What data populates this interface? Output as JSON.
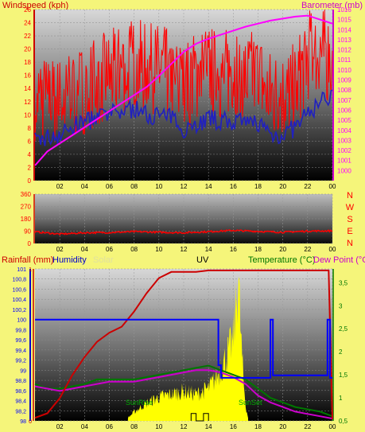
{
  "colors": {
    "background": "#f5f57a",
    "wind_speed": "#ff0000",
    "wind_avg": "#2020c0",
    "barometer": "#ff00ff",
    "direction": "#ff0000",
    "rainfall": "#cc0000",
    "humidity": "#0000ff",
    "solar": "#ffff00",
    "uv": "#000000",
    "temperature": "#007700",
    "dew_point": "#cc00cc"
  },
  "chart_data": [
    {
      "type": "line",
      "title": "",
      "left_axis_label": "Windspeed (kph)",
      "right_axis_label": "Barometer (mb)",
      "x_ticks": [
        "02",
        "04",
        "06",
        "08",
        "10",
        "12",
        "14",
        "16",
        "18",
        "20",
        "22",
        "00"
      ],
      "x_range_hours": [
        0,
        24
      ],
      "left_ylim": [
        0,
        26
      ],
      "left_ticks": [
        "0",
        "2",
        "4",
        "6",
        "8",
        "10",
        "12",
        "14",
        "16",
        "18",
        "20",
        "22",
        "24",
        "26"
      ],
      "right_ylim": [
        999,
        1016
      ],
      "right_ticks": [
        "1000",
        "1001",
        "1002",
        "1003",
        "1004",
        "1005",
        "1006",
        "1007",
        "1008",
        "1009",
        "1010",
        "1011",
        "1012",
        "1013",
        "1014",
        "1015",
        "1016"
      ],
      "series": [
        {
          "key": "gust",
          "axis": "left",
          "x": [
            0,
            1,
            2,
            3,
            4,
            5,
            6,
            7,
            8,
            9,
            10,
            11,
            12,
            13,
            14,
            15,
            16,
            17,
            18,
            19,
            20,
            21,
            22,
            23,
            24
          ],
          "y": [
            13,
            12,
            12,
            13,
            14,
            15,
            16,
            17,
            18,
            17,
            17,
            16,
            14,
            16,
            17,
            16,
            17,
            16,
            16,
            13,
            13,
            14,
            19,
            20,
            18
          ]
        },
        {
          "key": "average",
          "axis": "left",
          "x": [
            0,
            1,
            2,
            3,
            4,
            5,
            6,
            7,
            8,
            9,
            10,
            11,
            12,
            13,
            14,
            15,
            16,
            17,
            18,
            19,
            20,
            21,
            22,
            23,
            24
          ],
          "y": [
            6,
            6.5,
            7,
            8,
            9,
            9.5,
            10,
            10.5,
            11,
            10,
            10,
            9.5,
            8,
            8.5,
            9.5,
            9,
            9,
            8.5,
            9,
            7,
            7,
            8,
            10,
            12,
            13
          ]
        },
        {
          "key": "barometer",
          "axis": "right",
          "x": [
            0,
            1,
            2,
            3,
            4,
            5,
            6,
            7,
            8,
            9,
            10,
            11,
            12,
            13,
            14,
            15,
            16,
            17,
            18,
            19,
            20,
            21,
            22,
            23,
            24
          ],
          "y": [
            1000.5,
            1001.9,
            1002.7,
            1003.5,
            1004.3,
            1005.1,
            1005.9,
            1006.7,
            1007.5,
            1008.3,
            1009.4,
            1010.6,
            1011.8,
            1012.6,
            1013.1,
            1013.5,
            1013.9,
            1014.3,
            1014.6,
            1014.9,
            1015.1,
            1015.3,
            1015.4,
            1015.0,
            1014.6
          ]
        }
      ]
    },
    {
      "type": "line",
      "title": "",
      "left_ylim": [
        0,
        360
      ],
      "left_ticks": [
        "0",
        "90",
        "180",
        "270",
        "360"
      ],
      "compass_labels": [
        "N",
        "W",
        "S",
        "E",
        "N"
      ],
      "x_ticks": [
        "02",
        "04",
        "06",
        "08",
        "10",
        "12",
        "14",
        "16",
        "18",
        "20",
        "22",
        "00"
      ],
      "series": [
        {
          "key": "direction",
          "x": [
            0,
            2,
            4,
            6,
            8,
            10,
            12,
            14,
            16,
            18,
            20,
            22,
            24
          ],
          "y": [
            85,
            68,
            78,
            80,
            86,
            82,
            78,
            86,
            95,
            88,
            82,
            90,
            92
          ]
        }
      ]
    },
    {
      "type": "line",
      "title": "",
      "legend": [
        "Rainfall (mm)",
        "Humidity",
        "Solar",
        "UV",
        "Temperature (°C)",
        "Dew Point (°C)"
      ],
      "x_ticks": [
        "02",
        "04",
        "06",
        "08",
        "10",
        "12",
        "14",
        "16",
        "18",
        "20",
        "22",
        "00"
      ],
      "left_ticks": [
        "0",
        "1"
      ],
      "humidity_ticks": [
        "98",
        "98,2",
        "98,4",
        "98,6",
        "98,8",
        "99",
        "99,2",
        "99,4",
        "99,6",
        "99,8",
        "100",
        "100,2",
        "100,4",
        "100,6",
        "100,8",
        "101"
      ],
      "humidity_ylim": [
        98,
        101
      ],
      "right_ticks": [
        "0,5",
        "1",
        "1,5",
        "2",
        "2,5",
        "3",
        "3,5"
      ],
      "temp_ylim": [
        0.5,
        3.8
      ],
      "annotations": [
        "SunRise",
        "SunSet"
      ],
      "series": [
        {
          "key": "humidity",
          "axis": "humidity",
          "x": [
            0,
            14.8,
            14.8,
            15,
            15,
            19,
            19,
            19.2,
            19.2,
            23.6,
            23.6,
            23.8,
            23.8,
            24
          ],
          "y": [
            100,
            100,
            99.1,
            99.1,
            98.85,
            98.85,
            100,
            100,
            98.9,
            98.9,
            100,
            100,
            98.85,
            98.85
          ]
        },
        {
          "key": "temperature",
          "axis": "temp",
          "x": [
            0,
            1,
            2,
            3,
            4,
            5,
            6,
            7,
            8,
            9,
            10,
            11,
            12,
            13,
            14,
            15,
            16,
            17,
            18,
            19,
            20,
            21,
            22,
            23,
            24
          ],
          "y": [
            1.3,
            1.2,
            1.2,
            1.25,
            1.3,
            1.4,
            1.4,
            1.4,
            1.4,
            1.45,
            1.5,
            1.55,
            1.6,
            1.65,
            1.7,
            1.6,
            1.5,
            1.4,
            1.2,
            1.0,
            0.9,
            0.8,
            0.75,
            0.7,
            0.6
          ]
        },
        {
          "key": "dew_point",
          "axis": "temp",
          "x": [
            0,
            1,
            2,
            3,
            4,
            5,
            6,
            7,
            8,
            9,
            10,
            11,
            12,
            13,
            14,
            15,
            16,
            17,
            18,
            19,
            20,
            21,
            22,
            23,
            24
          ],
          "y": [
            1.25,
            1.2,
            1.15,
            1.2,
            1.25,
            1.3,
            1.35,
            1.35,
            1.35,
            1.4,
            1.45,
            1.5,
            1.55,
            1.6,
            1.6,
            1.55,
            1.45,
            1.3,
            1.05,
            0.9,
            0.8,
            0.7,
            0.65,
            0.6,
            0.55
          ]
        },
        {
          "key": "rainfall",
          "axis": "rain",
          "x": [
            0,
            1,
            2,
            3,
            4,
            5,
            6,
            7,
            8,
            9,
            10,
            11,
            12,
            13,
            14,
            15,
            16,
            17,
            18,
            19,
            20,
            21,
            22,
            23,
            23.7,
            24
          ],
          "y": [
            0.02,
            0.05,
            0.15,
            0.3,
            0.42,
            0.52,
            0.58,
            0.62,
            0.72,
            0.84,
            0.94,
            0.98,
            0.98,
            0.98,
            0.99,
            0.99,
            0.99,
            0.99,
            0.99,
            0.99,
            0.99,
            0.99,
            0.99,
            0.99,
            0.99,
            0.01
          ]
        },
        {
          "key": "solar",
          "axis": "solar",
          "x": [
            7.5,
            8,
            9,
            10,
            11,
            12,
            13,
            14,
            14.5,
            15,
            15.5,
            16,
            16.2,
            16.4,
            16.6,
            16.8,
            17,
            17.2
          ],
          "y": [
            0.02,
            0.06,
            0.12,
            0.16,
            0.18,
            0.2,
            0.18,
            0.22,
            0.28,
            0.35,
            0.45,
            0.55,
            0.75,
            1.0,
            0.6,
            0.3,
            0.1,
            0.02
          ]
        },
        {
          "key": "uv",
          "axis": "solar",
          "x": [
            12.6,
            12.6,
            13,
            13,
            13.6,
            13.6,
            14,
            14
          ],
          "y": [
            0,
            0.05,
            0.05,
            0,
            0,
            0.05,
            0.05,
            0
          ]
        }
      ]
    }
  ],
  "labels": {
    "windspeed": "Windspeed (kph)",
    "barometer": "Barometer (mb)",
    "rainfall": "Rainfall (mm)",
    "humidity": "Humidity",
    "solar": "Solar",
    "uv": "UV",
    "temperature": "Temperature (°C)",
    "dew_point": "Dew Point (°C)",
    "sunrise": "SunRise",
    "sunset": "SunSet"
  }
}
